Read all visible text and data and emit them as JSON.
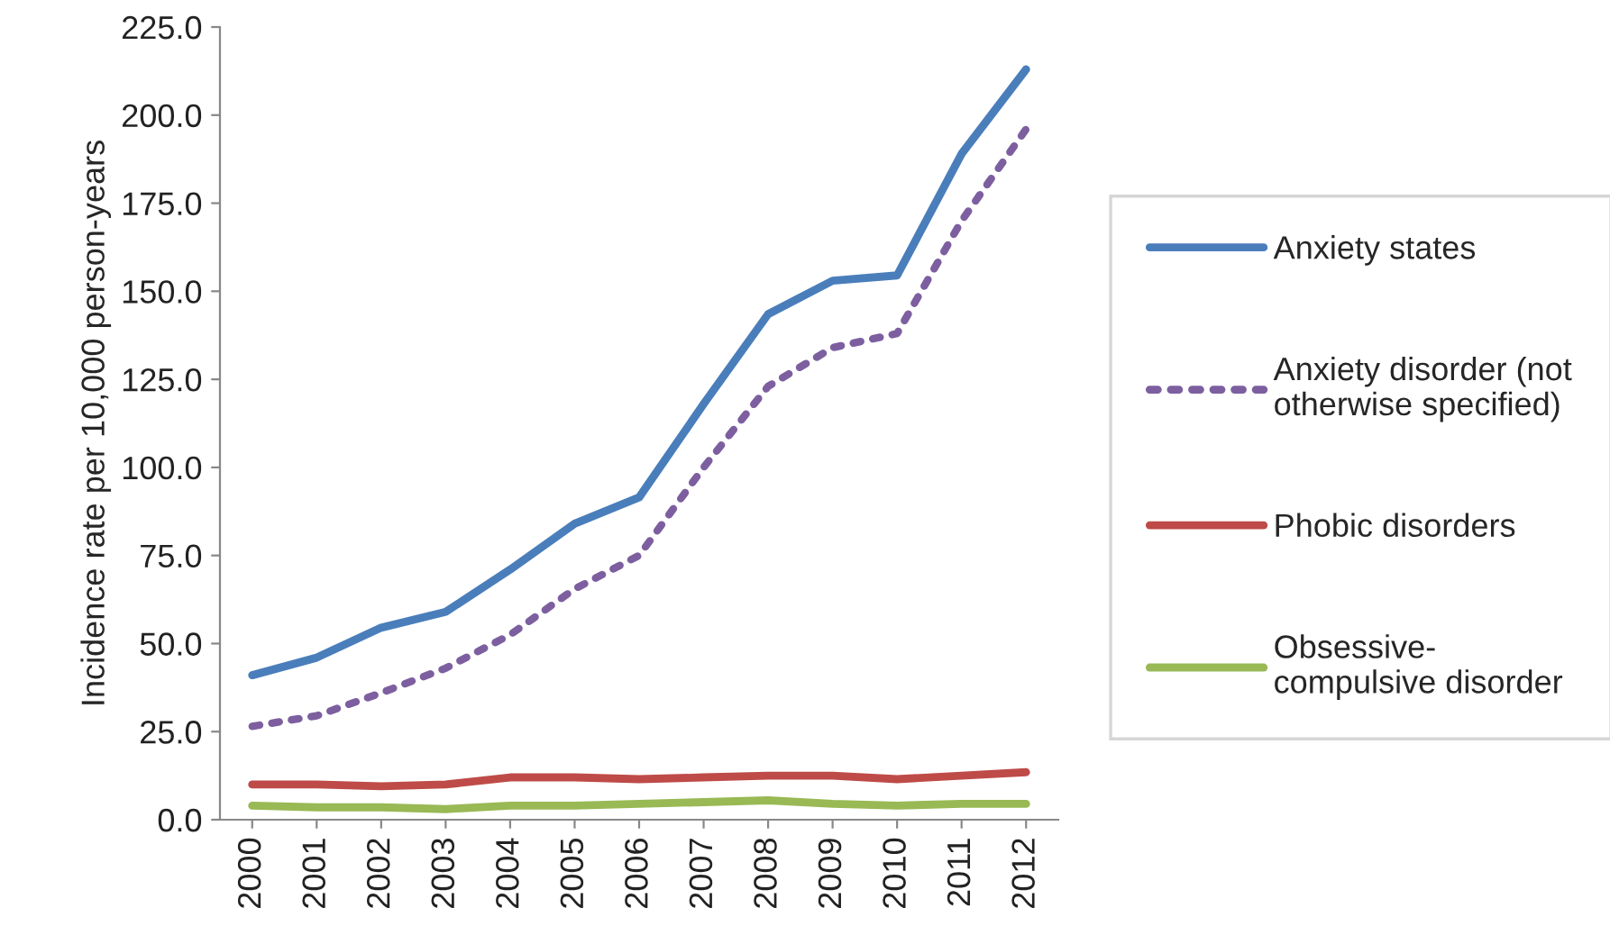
{
  "chart_data": {
    "type": "line",
    "ylabel": "Incidence rate per 10,000 person-years",
    "categories": [
      "2000",
      "2001",
      "2002",
      "2003",
      "2004",
      "2005",
      "2006",
      "2007",
      "2008",
      "2009",
      "2010",
      "2011",
      "2012"
    ],
    "series": [
      {
        "name": "Anxiety states",
        "color": "#4a7ebb",
        "line_style": "solid",
        "values": [
          41,
          46,
          54.5,
          59,
          71,
          84,
          91.5,
          118,
          143.5,
          153,
          154.5,
          189,
          213
        ]
      },
      {
        "name": "Anxiety disorder (not\notherwise specified)",
        "color": "#7d5fa0",
        "line_style": "dotted",
        "values": [
          26.5,
          29.5,
          36,
          43,
          52.5,
          65.5,
          75,
          100,
          123,
          134,
          138,
          170,
          196
        ]
      },
      {
        "name": "Phobic disorders",
        "color": "#be4b48",
        "line_style": "solid",
        "values": [
          10,
          10,
          9.5,
          10,
          12,
          12,
          11.5,
          12,
          12.5,
          12.5,
          11.5,
          12.5,
          13.5
        ]
      },
      {
        "name": "Obsessive-\ncompulsive disorder",
        "color": "#98b954",
        "line_style": "solid",
        "values": [
          4,
          3.5,
          3.5,
          3,
          4,
          4,
          4.5,
          5,
          5.5,
          4.5,
          4,
          4.5,
          4.5
        ]
      }
    ],
    "ylim": [
      0,
      225
    ],
    "yticks": [
      {
        "value": 0,
        "label": "0.0"
      },
      {
        "value": 25,
        "label": "25.0"
      },
      {
        "value": 50,
        "label": "50.0"
      },
      {
        "value": 75,
        "label": "75.0"
      },
      {
        "value": 100,
        "label": "100.0"
      },
      {
        "value": 125,
        "label": "125.0"
      },
      {
        "value": 150,
        "label": "150.0"
      },
      {
        "value": 175,
        "label": "175.0"
      },
      {
        "value": 200,
        "label": "200.0"
      },
      {
        "value": 225,
        "label": "225.0"
      }
    ],
    "grid": false,
    "legend": "right",
    "marker": "none"
  }
}
